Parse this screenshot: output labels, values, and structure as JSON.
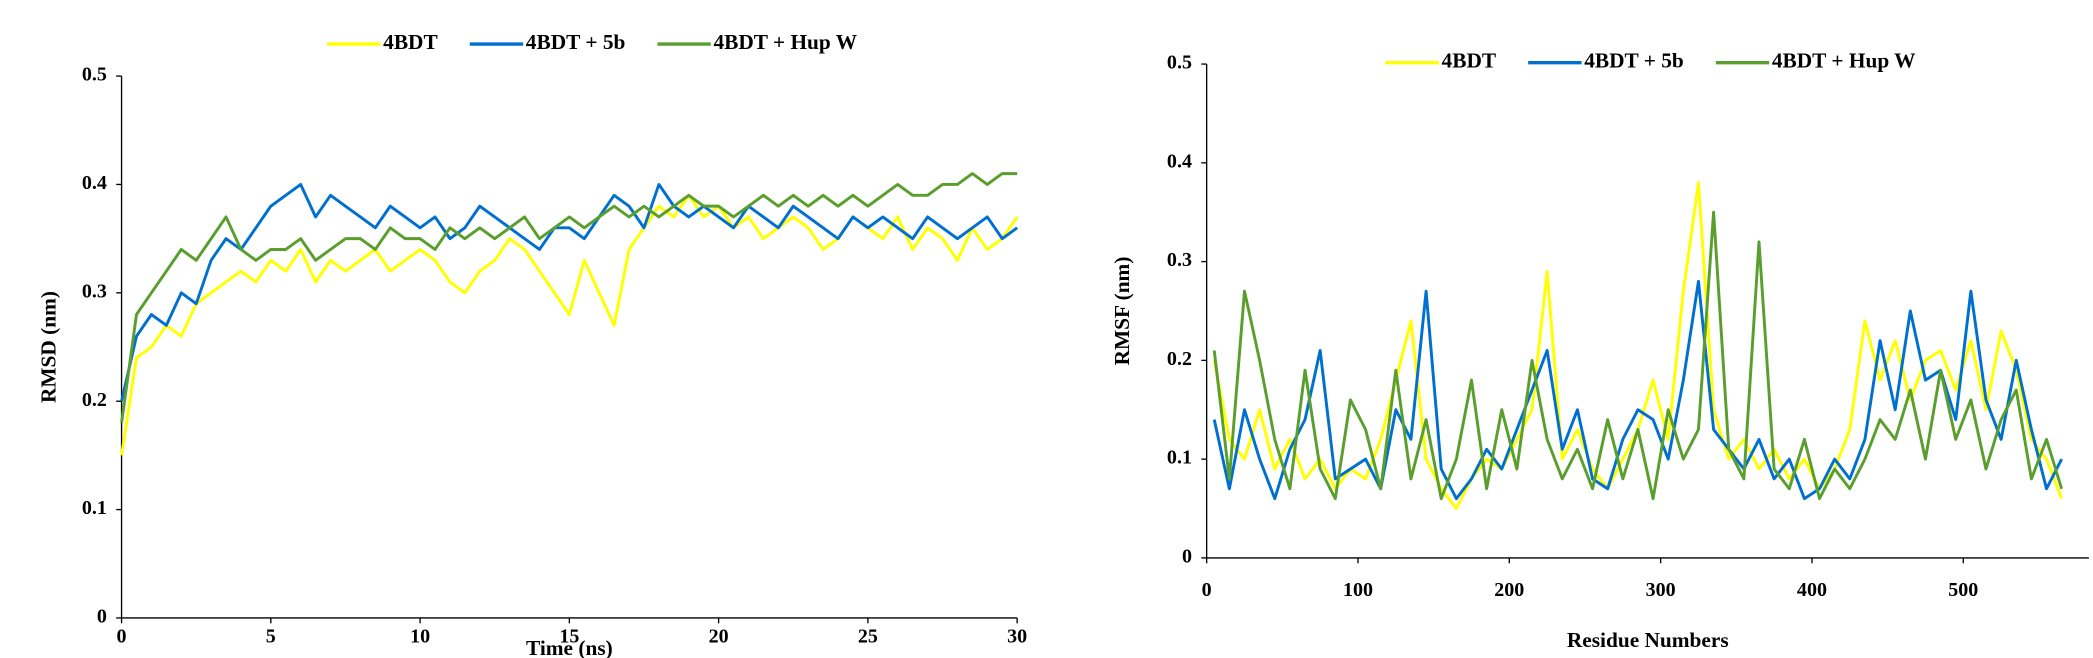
{
  "chart_data": [
    {
      "type": "line",
      "ylabel": "RMSD (nm)",
      "xlabel": "Time (ns)",
      "x": [
        0,
        0.5,
        1,
        1.5,
        2,
        2.5,
        3,
        3.5,
        4,
        4.5,
        5,
        5.5,
        6,
        6.5,
        7,
        7.5,
        8,
        8.5,
        9,
        9.5,
        10,
        10.5,
        11,
        11.5,
        12,
        12.5,
        13,
        13.5,
        14,
        14.5,
        15,
        15.5,
        16,
        16.5,
        17,
        17.5,
        18,
        18.5,
        19,
        19.5,
        20,
        20.5,
        21,
        21.5,
        22,
        22.5,
        23,
        23.5,
        24,
        24.5,
        25,
        25.5,
        26,
        26.5,
        27,
        27.5,
        28,
        28.5,
        29,
        29.5,
        30
      ],
      "series": [
        {
          "name": "4BDT",
          "color": "#ffff00",
          "values": [
            0.15,
            0.24,
            0.25,
            0.27,
            0.26,
            0.29,
            0.3,
            0.31,
            0.32,
            0.31,
            0.33,
            0.32,
            0.34,
            0.31,
            0.33,
            0.32,
            0.33,
            0.34,
            0.32,
            0.33,
            0.34,
            0.33,
            0.31,
            0.3,
            0.32,
            0.33,
            0.35,
            0.34,
            0.32,
            0.3,
            0.28,
            0.33,
            0.3,
            0.27,
            0.34,
            0.36,
            0.38,
            0.37,
            0.39,
            0.37,
            0.38,
            0.36,
            0.37,
            0.35,
            0.36,
            0.37,
            0.36,
            0.34,
            0.35,
            0.37,
            0.36,
            0.35,
            0.37,
            0.34,
            0.36,
            0.35,
            0.33,
            0.36,
            0.34,
            0.35,
            0.37
          ]
        },
        {
          "name": "4BDT + 5b",
          "color": "#0070d0",
          "values": [
            0.2,
            0.26,
            0.28,
            0.27,
            0.3,
            0.29,
            0.33,
            0.35,
            0.34,
            0.36,
            0.38,
            0.39,
            0.4,
            0.37,
            0.39,
            0.38,
            0.37,
            0.36,
            0.38,
            0.37,
            0.36,
            0.37,
            0.35,
            0.36,
            0.38,
            0.37,
            0.36,
            0.35,
            0.34,
            0.36,
            0.36,
            0.35,
            0.37,
            0.39,
            0.38,
            0.36,
            0.4,
            0.38,
            0.37,
            0.38,
            0.37,
            0.36,
            0.38,
            0.37,
            0.36,
            0.38,
            0.37,
            0.36,
            0.35,
            0.37,
            0.36,
            0.37,
            0.36,
            0.35,
            0.37,
            0.36,
            0.35,
            0.36,
            0.37,
            0.35,
            0.36
          ]
        },
        {
          "name": "4BDT + Hup W",
          "color": "#5a9e2e",
          "values": [
            0.18,
            0.28,
            0.3,
            0.32,
            0.34,
            0.33,
            0.35,
            0.37,
            0.34,
            0.33,
            0.34,
            0.34,
            0.35,
            0.33,
            0.34,
            0.35,
            0.35,
            0.34,
            0.36,
            0.35,
            0.35,
            0.34,
            0.36,
            0.35,
            0.36,
            0.35,
            0.36,
            0.37,
            0.35,
            0.36,
            0.37,
            0.36,
            0.37,
            0.38,
            0.37,
            0.38,
            0.37,
            0.38,
            0.39,
            0.38,
            0.38,
            0.37,
            0.38,
            0.39,
            0.38,
            0.39,
            0.38,
            0.39,
            0.38,
            0.39,
            0.38,
            0.39,
            0.4,
            0.39,
            0.39,
            0.4,
            0.4,
            0.41,
            0.4,
            0.41,
            0.41
          ]
        }
      ],
      "xlim": [
        0,
        30
      ],
      "xticks": [
        0,
        5,
        10,
        15,
        20,
        25,
        30
      ],
      "ylim": [
        0,
        0.5
      ],
      "yticks": [
        0,
        0.1,
        0.2,
        0.3,
        0.4,
        0.5
      ],
      "grid": false,
      "legend": "top"
    },
    {
      "type": "line",
      "ylabel": "RMSF (nm)",
      "xlabel": "Residue Numbers",
      "x": [
        5,
        15,
        25,
        35,
        45,
        55,
        65,
        75,
        85,
        95,
        105,
        115,
        125,
        135,
        145,
        155,
        165,
        175,
        185,
        195,
        205,
        215,
        225,
        235,
        245,
        255,
        265,
        275,
        285,
        295,
        305,
        315,
        325,
        335,
        345,
        355,
        365,
        375,
        385,
        395,
        405,
        415,
        425,
        435,
        445,
        455,
        465,
        475,
        485,
        495,
        505,
        515,
        525,
        535,
        545,
        555,
        565
      ],
      "series": [
        {
          "name": "4BDT",
          "color": "#ffff00",
          "values": [
            0.2,
            0.12,
            0.1,
            0.15,
            0.09,
            0.12,
            0.08,
            0.1,
            0.07,
            0.09,
            0.08,
            0.12,
            0.18,
            0.24,
            0.1,
            0.07,
            0.05,
            0.08,
            0.1,
            0.09,
            0.12,
            0.15,
            0.29,
            0.1,
            0.13,
            0.09,
            0.07,
            0.1,
            0.13,
            0.18,
            0.12,
            0.27,
            0.38,
            0.15,
            0.1,
            0.12,
            0.09,
            0.11,
            0.08,
            0.1,
            0.07,
            0.09,
            0.13,
            0.24,
            0.18,
            0.22,
            0.16,
            0.2,
            0.21,
            0.17,
            0.22,
            0.15,
            0.23,
            0.19,
            0.12,
            0.1,
            0.06
          ]
        },
        {
          "name": "4BDT + 5b",
          "color": "#0070d0",
          "values": [
            0.14,
            0.07,
            0.15,
            0.1,
            0.06,
            0.11,
            0.14,
            0.21,
            0.08,
            0.09,
            0.1,
            0.07,
            0.15,
            0.12,
            0.27,
            0.09,
            0.06,
            0.08,
            0.11,
            0.09,
            0.13,
            0.17,
            0.21,
            0.11,
            0.15,
            0.08,
            0.07,
            0.12,
            0.15,
            0.14,
            0.1,
            0.18,
            0.28,
            0.13,
            0.11,
            0.09,
            0.12,
            0.08,
            0.1,
            0.06,
            0.07,
            0.1,
            0.08,
            0.12,
            0.22,
            0.15,
            0.25,
            0.18,
            0.19,
            0.14,
            0.27,
            0.16,
            0.12,
            0.2,
            0.13,
            0.07,
            0.1
          ]
        },
        {
          "name": "4BDT + Hup W",
          "color": "#5a9e2e",
          "values": [
            0.21,
            0.08,
            0.27,
            0.2,
            0.12,
            0.07,
            0.19,
            0.09,
            0.06,
            0.16,
            0.13,
            0.07,
            0.19,
            0.08,
            0.14,
            0.06,
            0.1,
            0.18,
            0.07,
            0.15,
            0.09,
            0.2,
            0.12,
            0.08,
            0.11,
            0.07,
            0.14,
            0.08,
            0.13,
            0.06,
            0.15,
            0.1,
            0.13,
            0.35,
            0.11,
            0.08,
            0.32,
            0.09,
            0.07,
            0.12,
            0.06,
            0.09,
            0.07,
            0.1,
            0.14,
            0.12,
            0.17,
            0.1,
            0.19,
            0.12,
            0.16,
            0.09,
            0.14,
            0.17,
            0.08,
            0.12,
            0.07
          ]
        }
      ],
      "xlim": [
        0,
        583
      ],
      "xticks": [
        0,
        100,
        200,
        300,
        400,
        500
      ],
      "ylim": [
        0,
        0.5
      ],
      "yticks": [
        0,
        0.1,
        0.2,
        0.3,
        0.4,
        0.5
      ],
      "grid": false,
      "legend": "top"
    }
  ]
}
